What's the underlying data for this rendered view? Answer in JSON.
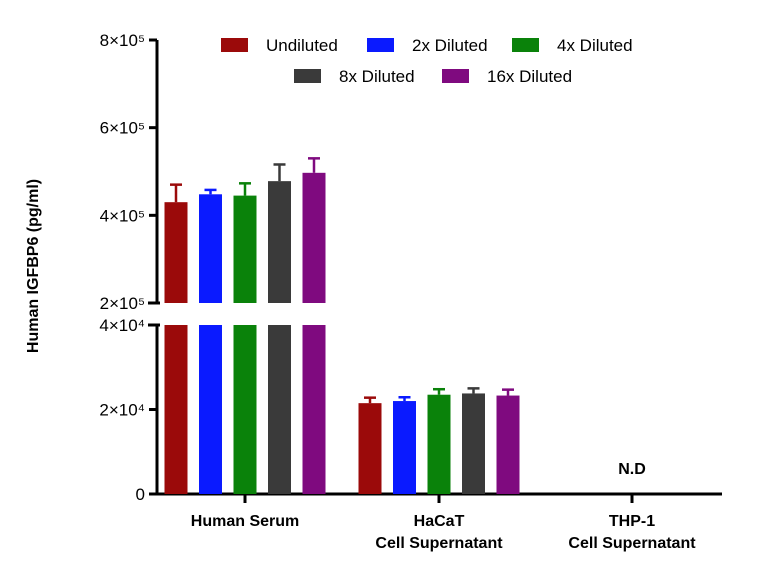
{
  "chart_data": {
    "type": "bar",
    "title": "",
    "ylabel": "Human IGFBP6 (pg/ml)",
    "y_axis_broken": true,
    "y_lower_segment": {
      "range": [
        0,
        40000
      ],
      "ticks": [
        {
          "value": 0,
          "label": "0"
        },
        {
          "value": 20000,
          "label": "2×10⁴"
        },
        {
          "value": 40000,
          "label": "4×10⁴"
        }
      ]
    },
    "y_upper_segment": {
      "range": [
        200000,
        800000
      ],
      "ticks": [
        {
          "value": 200000,
          "label": "2×10⁵"
        },
        {
          "value": 400000,
          "label": "4×10⁵"
        },
        {
          "value": 600000,
          "label": "6×10⁵"
        },
        {
          "value": 800000,
          "label": "8×10⁵"
        }
      ]
    },
    "categories": [
      {
        "lines": [
          "Human Serum"
        ]
      },
      {
        "lines": [
          "HaCaT",
          "Cell Supernatant"
        ]
      },
      {
        "lines": [
          "THP-1",
          "Cell Supernatant"
        ]
      }
    ],
    "series": [
      {
        "name": "Undiluted",
        "color": "#9b0a0a",
        "values": [
          430000,
          21500,
          null
        ],
        "errors": [
          40000,
          1300,
          null
        ]
      },
      {
        "name": "2x Diluted",
        "color": "#0a1aff",
        "values": [
          448000,
          22000,
          null
        ],
        "errors": [
          10000,
          900,
          null
        ]
      },
      {
        "name": "4x Diluted",
        "color": "#0a820a",
        "values": [
          445000,
          23500,
          null
        ],
        "errors": [
          28000,
          1300,
          null
        ]
      },
      {
        "name": "8x Diluted",
        "color": "#3a3a3a",
        "values": [
          478000,
          23800,
          null
        ],
        "errors": [
          38000,
          1200,
          null
        ]
      },
      {
        "name": "16x Diluted",
        "color": "#7f0a7f",
        "values": [
          497000,
          23300,
          null
        ],
        "errors": [
          33000,
          1400,
          null
        ]
      }
    ],
    "annotations": [
      {
        "category_index": 2,
        "text": "N.D"
      }
    ],
    "legend": {
      "position": "top"
    },
    "grid": false
  }
}
